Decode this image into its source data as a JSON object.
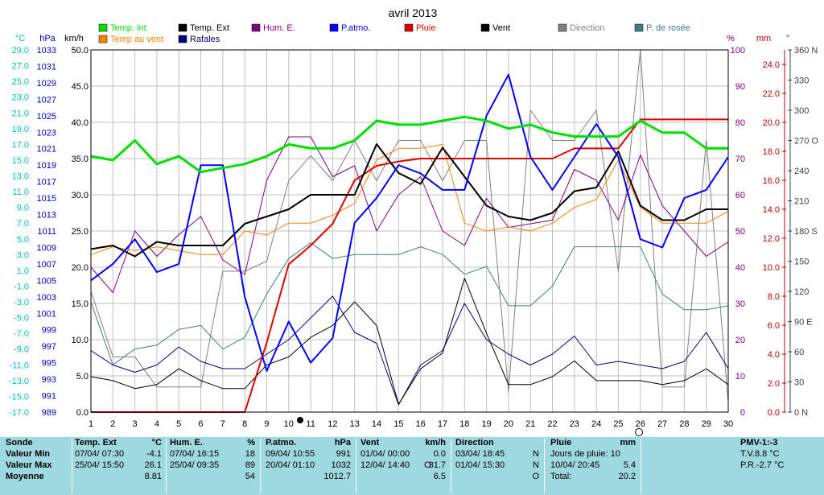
{
  "colors": {
    "temp_int": "#00e000",
    "temp_ext": "#000000",
    "hum": "#800080",
    "patmo": "#0000ff",
    "pluie": "#e00000",
    "vent": "#000000",
    "direction": "#808080",
    "rosee": "#408080",
    "temp_vent": "#ff8000",
    "rafales": "#000080",
    "axis_temp": "#00c0c0",
    "axis_hpa": "#0000c0",
    "axis_pct": "#800080",
    "axis_mm": "#c00000",
    "bottom_bg": "#9ed8e0"
  },
  "chart_data": {
    "type": "line",
    "title": "avril 2013",
    "x": [
      1,
      2,
      3,
      4,
      5,
      6,
      7,
      8,
      9,
      10,
      11,
      12,
      13,
      14,
      15,
      16,
      17,
      18,
      19,
      20,
      21,
      22,
      23,
      24,
      25,
      26,
      27,
      28,
      29,
      30
    ],
    "axes": {
      "temp": {
        "unit": "°C",
        "ylim": [
          -17,
          29
        ],
        "ticks": [
          "29.0",
          "27.0",
          "25.0",
          "23.0",
          "21.0",
          "19.0",
          "17.0",
          "15.0",
          "13.0",
          "11.0",
          "9.0",
          "7.0",
          "5.0",
          "3.0",
          "1.0",
          "-1.0",
          "-3.0",
          "-5.0",
          "-7.0",
          "-9.0",
          "-11.0",
          "-13.0",
          "-15.0",
          "-17.0"
        ]
      },
      "hpa": {
        "unit": "hPa",
        "ylim": [
          989,
          1033
        ],
        "ticks": [
          "1033",
          "1031",
          "1029",
          "1027",
          "1025",
          "1023",
          "1021",
          "1019",
          "1017",
          "1015",
          "1013",
          "1011",
          "1009",
          "1007",
          "1005",
          "1003",
          "1001",
          "999",
          "997",
          "995",
          "993",
          "991",
          "989"
        ]
      },
      "kmh": {
        "unit": "km/h",
        "ylim": [
          0,
          50
        ],
        "ticks": [
          "50.0",
          "45.0",
          "40.0",
          "35.0",
          "30.0",
          "25.0",
          "20.0",
          "15.0",
          "10.0",
          "5.0",
          "0.0"
        ]
      },
      "pct": {
        "unit": "%",
        "ylim": [
          0,
          100
        ],
        "ticks": [
          "100",
          "90",
          "80",
          "70",
          "60",
          "50",
          "40",
          "30",
          "20",
          "10",
          "0"
        ]
      },
      "mm": {
        "unit": "mm",
        "ylim": [
          0,
          25
        ],
        "ticks": [
          "24.0",
          "22.0",
          "20.0",
          "18.0",
          "16.0",
          "14.0",
          "12.0",
          "10.0",
          "8.0",
          "6.0",
          "4.0",
          "2.0",
          "0.0"
        ]
      },
      "dir": {
        "unit": "°",
        "ylim": [
          0,
          360
        ],
        "ticks": [
          "360 N",
          "330",
          "300",
          "270 O",
          "240",
          "210",
          "180 S",
          "150",
          "120",
          "90 E",
          "60",
          "30",
          "0 N"
        ]
      }
    },
    "series": [
      {
        "name": "Temp. int",
        "axis": "temp",
        "key": "temp_int",
        "width": 3,
        "values": [
          15.5,
          15.0,
          17.5,
          14.5,
          15.5,
          13.5,
          14.0,
          14.5,
          15.5,
          17.0,
          16.5,
          16.5,
          17.5,
          20.0,
          19.5,
          19.5,
          20.0,
          20.5,
          20.0,
          19.0,
          19.5,
          18.5,
          18.0,
          18.0,
          18.0,
          20.0,
          18.5,
          18.5,
          16.5,
          16.5
        ]
      },
      {
        "name": "Temp. Ext",
        "axis": "temp",
        "key": "temp_ext",
        "width": 1,
        "values": [
          -12.5,
          -13.0,
          -14.0,
          -13.5,
          -11.5,
          -13.0,
          -14.0,
          -14.0,
          -11.0,
          -10.0,
          -7.5,
          -6.0,
          -3.0,
          -6.0,
          -16.0,
          -11.5,
          -9.5,
          0.0,
          -7.0,
          -13.5,
          -13.5,
          -12.5,
          -10.5,
          -13.0,
          -13.0,
          -13.0,
          -13.5,
          -13.0,
          -11.5,
          -13.5
        ]
      },
      {
        "name": "Hum. E.",
        "axis": "pct",
        "key": "hum",
        "width": 1,
        "values": [
          40,
          33,
          50,
          43,
          49,
          54,
          42,
          38,
          64,
          76,
          76,
          65,
          68,
          50,
          60,
          65,
          50,
          46,
          59,
          51,
          52,
          53,
          67,
          64,
          53,
          71,
          57,
          50,
          43,
          47
        ]
      },
      {
        "name": "P.atmo.",
        "axis": "hpa",
        "key": "patmo",
        "width": 2,
        "values": [
          1005,
          1007,
          1010,
          1006,
          1007,
          1019,
          1019,
          1003,
          994,
          1000,
          995,
          998,
          1012,
          1015,
          1019,
          1018,
          1016,
          1016,
          1025,
          1030,
          1020,
          1016,
          1020,
          1024,
          1020,
          1010,
          1009,
          1015,
          1016,
          1020
        ]
      },
      {
        "name": "Pluie",
        "axis": "mm",
        "key": "pluie",
        "width": 2,
        "values": [
          0,
          0,
          0,
          0,
          0,
          0,
          0,
          0,
          4.8,
          10.2,
          11.5,
          13.0,
          16.0,
          17.0,
          17.3,
          17.5,
          17.5,
          17.5,
          17.5,
          17.5,
          17.5,
          17.5,
          18.2,
          18.2,
          18.2,
          20.2,
          20.2,
          20.2,
          20.2,
          20.2
        ]
      },
      {
        "name": "Vent",
        "axis": "kmh",
        "key": "vent",
        "width": 2,
        "values": [
          22.5,
          23.0,
          21.5,
          23.5,
          23.0,
          23.0,
          23.0,
          26.0,
          27.0,
          28.0,
          30.0,
          30.0,
          30.0,
          37.0,
          33.0,
          31.5,
          36.5,
          32.5,
          28.5,
          27.0,
          26.5,
          27.5,
          30.5,
          31.0,
          36.0,
          28.5,
          26.5,
          26.5,
          28.0,
          28.0
        ]
      },
      {
        "name": "Direction",
        "axis": "dir",
        "key": "direction",
        "width": 1,
        "values": [
          120,
          55,
          55,
          25,
          25,
          25,
          140,
          140,
          150,
          230,
          255,
          230,
          270,
          230,
          270,
          270,
          230,
          270,
          270,
          20,
          300,
          270,
          270,
          300,
          140,
          360,
          25,
          25,
          270,
          10
        ]
      },
      {
        "name": "P. de rosée",
        "axis": "temp",
        "key": "rosee",
        "width": 1,
        "values": [
          -3.0,
          -11.0,
          -9.0,
          -8.5,
          -6.5,
          -6.0,
          -9.0,
          -7.5,
          -2.0,
          2.5,
          4.5,
          2.5,
          3.0,
          3.0,
          3.0,
          4.0,
          3.0,
          0.5,
          1.5,
          -3.5,
          -3.5,
          -1.0,
          4.0,
          4.0,
          4.0,
          4.0,
          -2.0,
          -4.0,
          -4.0,
          -3.5
        ]
      },
      {
        "name": "Temp au vent",
        "axis": "temp",
        "key": "temp_vent",
        "width": 1,
        "values": [
          3.0,
          4.0,
          3.5,
          4.0,
          3.5,
          3.0,
          3.0,
          6.0,
          5.5,
          7.0,
          7.0,
          8.0,
          9.5,
          15.0,
          16.5,
          16.5,
          17.0,
          7.0,
          6.0,
          6.5,
          6.0,
          7.0,
          9.0,
          10.0,
          15.0,
          9.0,
          7.0,
          7.0,
          7.0,
          8.5
        ]
      },
      {
        "name": "Rafales",
        "axis": "kmh",
        "key": "rafales",
        "width": 1,
        "values": [
          8.5,
          6.5,
          5.5,
          6.5,
          9.0,
          7.0,
          6.0,
          6.0,
          8.0,
          10.0,
          13.0,
          16.0,
          11.0,
          9.5,
          1.0,
          6.5,
          8.5,
          15.0,
          10.0,
          8.0,
          6.5,
          8.0,
          10.5,
          6.5,
          7.0,
          6.5,
          6.0,
          7.0,
          11.0,
          6.0
        ]
      }
    ],
    "legend": [
      {
        "label": "Temp. int",
        "key": "temp_int"
      },
      {
        "label": "Temp. Ext",
        "key": "temp_ext"
      },
      {
        "label": "Hum. E.",
        "key": "hum"
      },
      {
        "label": "P.atmo.",
        "key": "patmo"
      },
      {
        "label": "Pluie",
        "key": "pluie"
      },
      {
        "label": "Vent",
        "key": "vent"
      },
      {
        "label": "Direction",
        "key": "direction"
      },
      {
        "label": "P. de rosée",
        "key": "rosee"
      },
      {
        "label": "Temp au vent",
        "key": "temp_vent"
      },
      {
        "label": "Rafales",
        "key": "rafales"
      }
    ]
  },
  "summary": {
    "row_labels": [
      "Sonde",
      "Valeur Min",
      "Valeur Max",
      "Moyenne"
    ],
    "temp": {
      "title": "Temp. Ext",
      "unit": "°C",
      "min_time": "07/04/ 07:30",
      "min_val": "-4.1",
      "max_time": "25/04/ 15:50",
      "max_val": "26.1",
      "avg": "8.81"
    },
    "hum": {
      "title": "Hum. E.",
      "unit": "%",
      "min_time": "07/04/ 16:15",
      "min_val": "18",
      "max_time": "25/04/ 09:35",
      "max_val": "89",
      "avg": "54"
    },
    "patmo": {
      "title": "P.atmo.",
      "unit": "hPa",
      "min_time": "09/04/ 10:55",
      "min_val": "991",
      "max_time": "20/04/ 01:10",
      "max_val": "1032",
      "avg": "1012.7"
    },
    "vent": {
      "title": "Vent",
      "unit": "km/h",
      "min_time": "01/04/ 00:00",
      "min_val": "0.0",
      "max_time": "12/04/ 14:40",
      "max_dir": "O",
      "max_val": "31.7",
      "avg": "6.5"
    },
    "direction": {
      "title": "Direction",
      "min_time": "03/04/ 18:45",
      "min_val": "N",
      "max_time": "01/04/ 15:30",
      "max_val": "N",
      "avg": "O"
    },
    "pluie": {
      "title": "Pluie",
      "unit": "mm",
      "jours": "Jours de pluie: 10",
      "max_time": "10/04/ 20:45",
      "max_val": "5.4",
      "total_label": "Total:",
      "total_val": "20.2"
    },
    "pmv": {
      "title": "PMV-1:-3",
      "tv": "T.V.8.8 °C",
      "pr": "P.R.-2.7 °C"
    }
  }
}
